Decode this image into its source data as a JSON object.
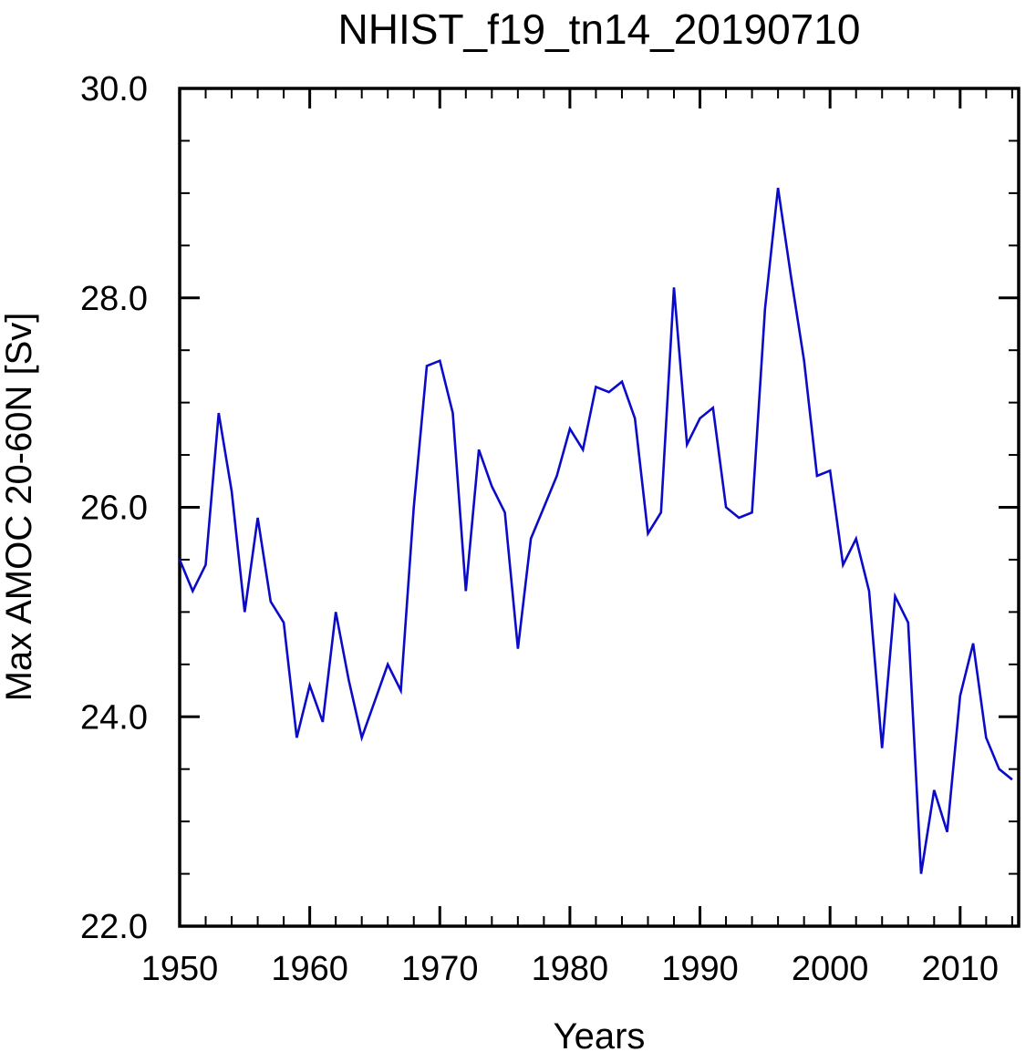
{
  "chart_data": {
    "type": "line",
    "title": "NHIST_f19_tn14_20190710",
    "xlabel": "Years",
    "ylabel": "Max AMOC 20-60N [Sv]",
    "xlim": [
      1950,
      2014.5
    ],
    "ylim": [
      22.0,
      30.0
    ],
    "xticks_major": [
      1950,
      1960,
      1970,
      1980,
      1990,
      2000,
      2010
    ],
    "xtick_labels": [
      "1950",
      "1960",
      "1970",
      "1980",
      "1990",
      "2000",
      "2010"
    ],
    "xtick_minor_step": 2,
    "yticks_major": [
      22.0,
      24.0,
      26.0,
      28.0,
      30.0
    ],
    "ytick_labels": [
      "22.0",
      "24.0",
      "26.0",
      "28.0",
      "30.0"
    ],
    "ytick_minor_step": 0.5,
    "grid": false,
    "legend": "none",
    "line_color": "#0a0ac8",
    "series": [
      {
        "name": "Max AMOC 20-60N",
        "x": [
          1950,
          1951,
          1952,
          1953,
          1954,
          1955,
          1956,
          1957,
          1958,
          1959,
          1960,
          1961,
          1962,
          1963,
          1964,
          1965,
          1966,
          1967,
          1968,
          1969,
          1970,
          1971,
          1972,
          1973,
          1974,
          1975,
          1976,
          1977,
          1978,
          1979,
          1980,
          1981,
          1982,
          1983,
          1984,
          1985,
          1986,
          1987,
          1988,
          1989,
          1990,
          1991,
          1992,
          1993,
          1994,
          1995,
          1996,
          1997,
          1998,
          1999,
          2000,
          2001,
          2002,
          2003,
          2004,
          2005,
          2006,
          2007,
          2008,
          2009,
          2010,
          2011,
          2012,
          2013,
          2014
        ],
        "values": [
          25.5,
          25.2,
          25.45,
          26.9,
          26.15,
          25.0,
          25.9,
          25.1,
          24.9,
          23.8,
          24.3,
          23.95,
          25.0,
          24.35,
          23.8,
          24.15,
          24.5,
          24.25,
          26.0,
          27.35,
          27.4,
          26.9,
          25.2,
          26.55,
          26.2,
          25.95,
          24.65,
          25.7,
          26.0,
          26.3,
          26.75,
          26.55,
          27.15,
          27.1,
          27.2,
          26.85,
          25.75,
          25.95,
          28.1,
          26.6,
          26.85,
          26.95,
          26.0,
          25.9,
          25.95,
          27.9,
          29.05,
          28.2,
          27.4,
          26.3,
          26.35,
          25.45,
          25.7,
          25.2,
          23.7,
          25.15,
          24.9,
          22.5,
          23.3,
          22.9,
          24.2,
          24.7,
          23.8,
          23.5,
          23.4
        ]
      }
    ]
  }
}
